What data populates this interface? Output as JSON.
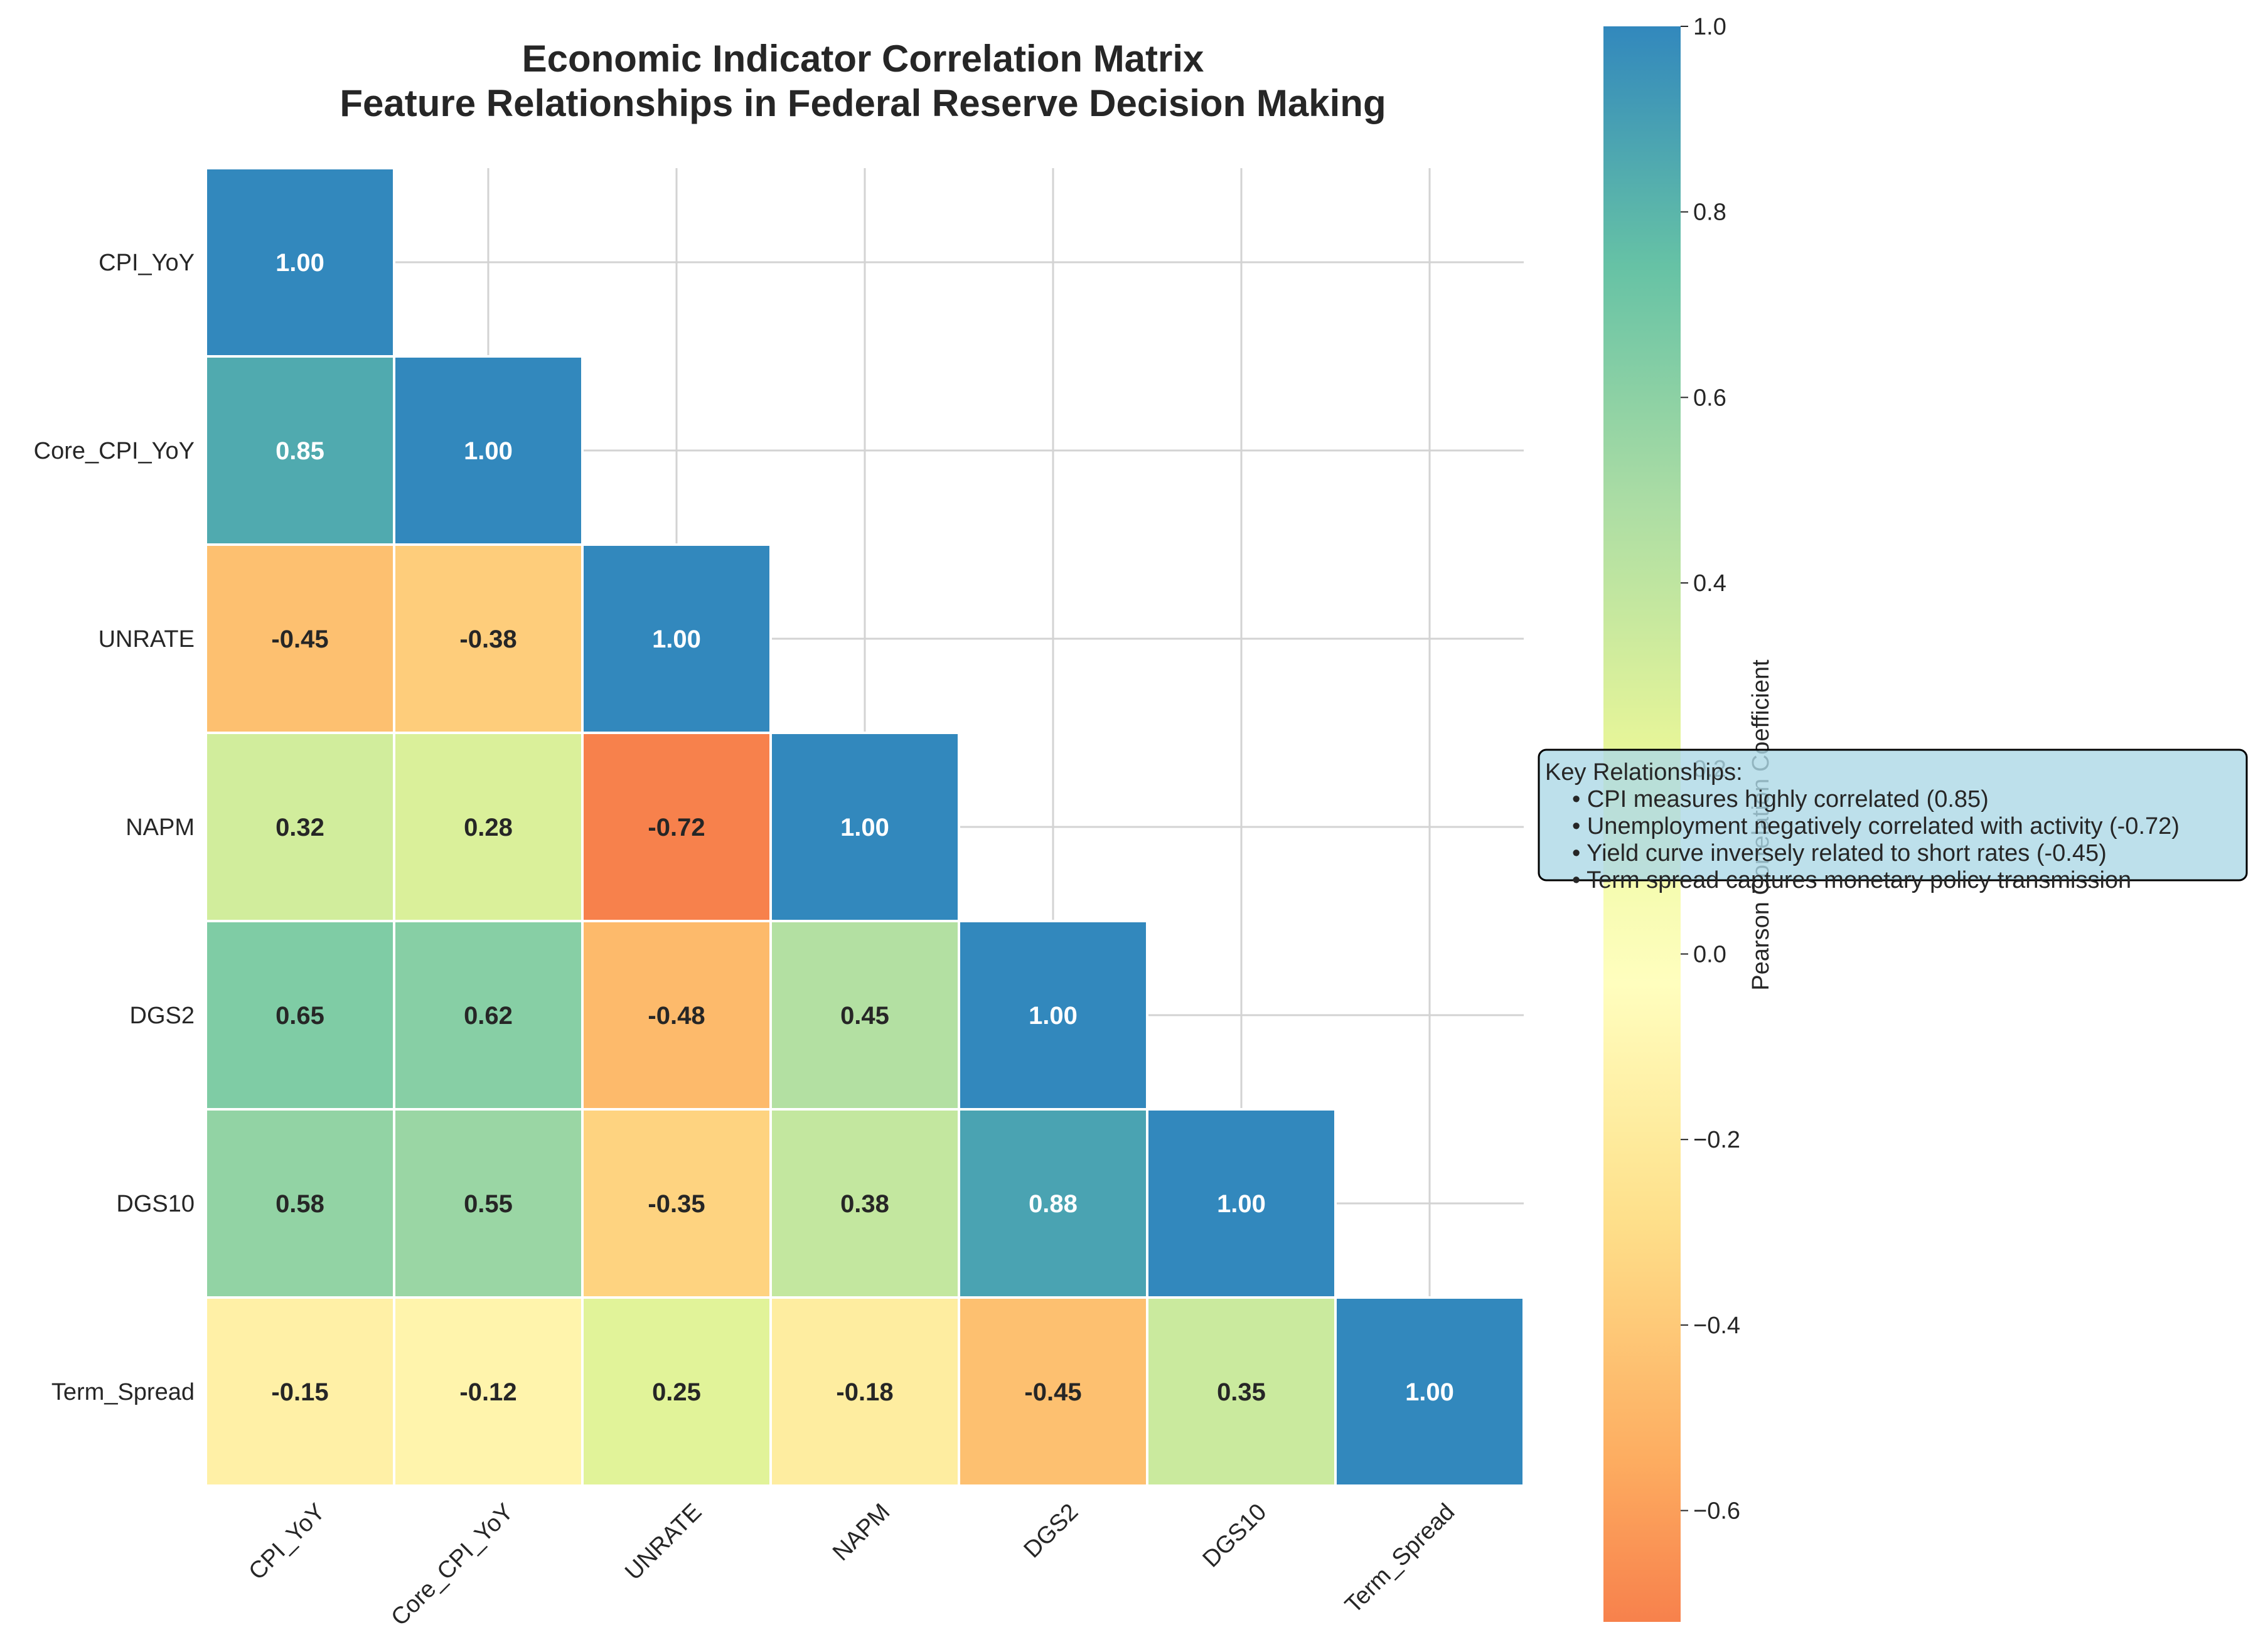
{
  "chart_data": {
    "type": "heatmap",
    "title": "Economic Indicator Correlation Matrix",
    "subtitle": "Feature Relationships in Federal Reserve Decision Making",
    "labels": [
      "CPI_YoY",
      "Core_CPI_YoY",
      "UNRATE",
      "NAPM",
      "DGS2",
      "DGS10",
      "Term_Spread"
    ],
    "mask": "lower-triangle (upper triangle hidden)",
    "values": [
      [
        1.0,
        null,
        null,
        null,
        null,
        null,
        null
      ],
      [
        0.85,
        1.0,
        null,
        null,
        null,
        null,
        null
      ],
      [
        -0.45,
        -0.38,
        1.0,
        null,
        null,
        null,
        null
      ],
      [
        0.32,
        0.28,
        -0.72,
        1.0,
        null,
        null,
        null
      ],
      [
        0.65,
        0.62,
        -0.48,
        0.45,
        1.0,
        null,
        null
      ],
      [
        0.58,
        0.55,
        -0.35,
        0.38,
        0.88,
        1.0,
        null
      ],
      [
        -0.15,
        -0.12,
        0.25,
        -0.18,
        -0.45,
        0.35,
        1.0
      ]
    ],
    "value_format": "2 decimals",
    "colormap": "Spectral (red low, blue high)",
    "colorbar": {
      "label": "Pearson Correlation Coefficient",
      "range": [
        -0.72,
        1.0
      ],
      "ticks": [
        1.0,
        0.8,
        0.6,
        0.4,
        0.2,
        0.0,
        -0.2,
        -0.4,
        -0.6
      ],
      "tick_labels": [
        "1.0",
        "0.8",
        "0.6",
        "0.4",
        "0.2",
        "0.0",
        "−0.2",
        "−0.4",
        "−0.6"
      ]
    },
    "grid": true,
    "annotation_box": {
      "title": "Key Relationships:",
      "lines": [
        "• CPI measures highly correlated (0.85)",
        "• Unemployment negatively correlated with activity (-0.72)",
        "• Yield curve inversely related to short rates (-0.45)",
        "• Term spread captures monetary policy transmission"
      ]
    }
  },
  "colors": {
    "background": "#ffffff",
    "grid": "#d3d3d3",
    "cell_border": "#ffffff",
    "text_dark": "#262626",
    "text_light": "#ffffff",
    "annotation_fill": "#add8e6",
    "annotation_edge": "#000000"
  }
}
